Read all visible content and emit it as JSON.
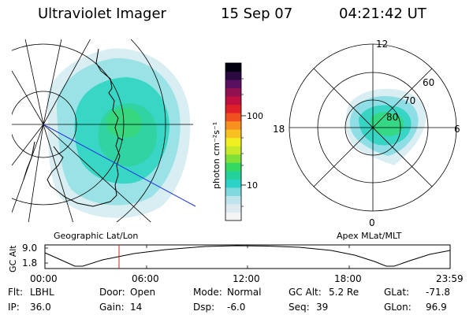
{
  "header": {
    "instrument": "Ultraviolet Imager",
    "date": "15 Sep 07",
    "time": "04:21:42 UT"
  },
  "colorbar": {
    "unit_label": "photon cm⁻²s⁻¹",
    "ticks": [
      "100",
      "10"
    ],
    "scale": "log",
    "colors": [
      "#f4f4f4",
      "#dfeaf0",
      "#bfe4ec",
      "#7ed8dc",
      "#2dd2c8",
      "#22d29a",
      "#35d860",
      "#7fe038",
      "#c8e82a",
      "#f0f020",
      "#f8c020",
      "#f89020",
      "#f05020",
      "#e02028",
      "#c01040",
      "#901050",
      "#5a1060",
      "#2a0a40",
      "#000010"
    ]
  },
  "left_map": {
    "label": "Geographic Lat/Lon"
  },
  "right_map": {
    "label": "Apex MLat/MLT",
    "mlt_labels": [
      "12",
      "18",
      "6",
      "0"
    ],
    "lat_labels": [
      "60",
      "70",
      "80"
    ]
  },
  "altitude_plot": {
    "ylabel": "GC Alt",
    "yticks": [
      "9.0",
      "1.8"
    ],
    "xticks": [
      "00:00",
      "06:00",
      "12:00",
      "18:00",
      "23:59"
    ],
    "marker_color": "#d02020"
  },
  "params": {
    "flt_label": "Flt:",
    "flt_value": "LBHL",
    "door_label": "Door:",
    "door_value": "Open",
    "mode_label": "Mode:",
    "mode_value": "Normal",
    "gcalt_label": "GC Alt:",
    "gcalt_value": "5.2 Re",
    "glat_label": "GLat:",
    "glat_value": "-71.8",
    "ip_label": "IP:",
    "ip_value": "36.0",
    "gain_label": "Gain:",
    "gain_value": "14",
    "dsp_label": "Dsp:",
    "dsp_value": "-6.0",
    "seq_label": "Seq:",
    "seq_value": "39",
    "glon_label": "GLon:",
    "glon_value": "96.9"
  }
}
